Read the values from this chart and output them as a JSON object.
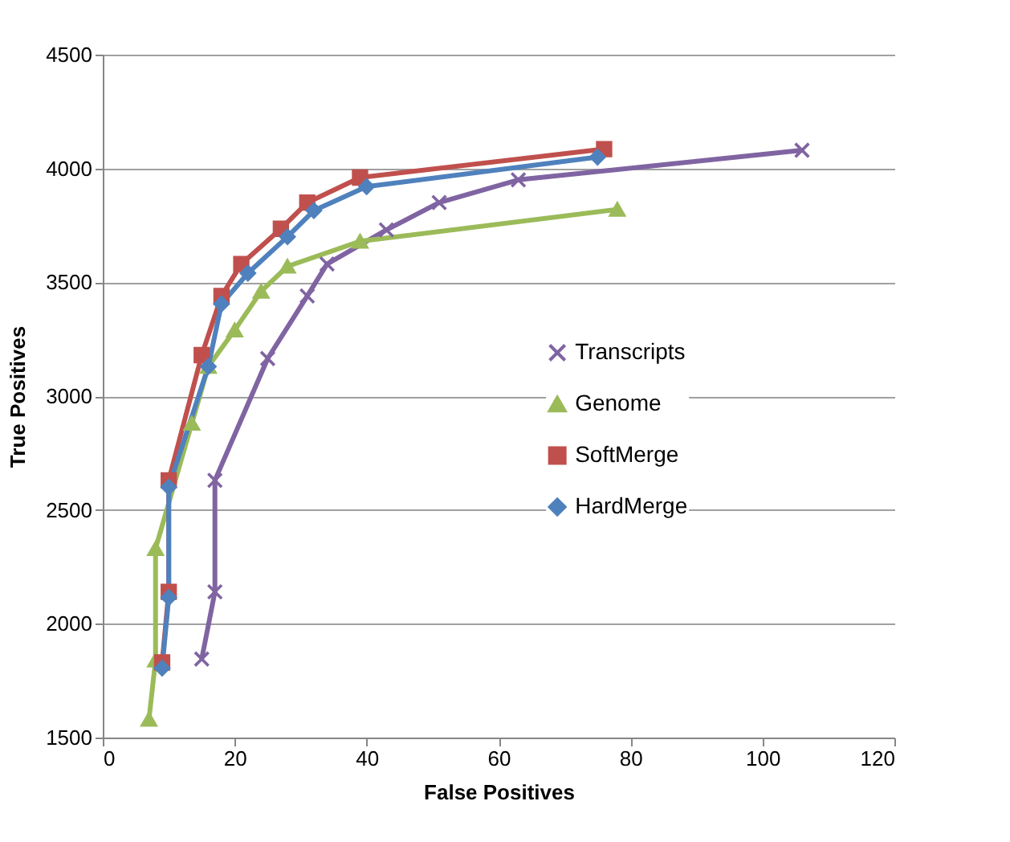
{
  "chart_data": {
    "type": "line",
    "xlabel": "False Positives",
    "ylabel": "True Positives",
    "xlim": [
      0,
      120
    ],
    "xticks": [
      0,
      20,
      40,
      60,
      80,
      100,
      120
    ],
    "ylim": [
      1500,
      4500
    ],
    "yticks": [
      1500,
      2000,
      2500,
      3000,
      3500,
      4000,
      4500
    ],
    "grid": "y",
    "legend": "right",
    "line_style": "solid",
    "series": [
      {
        "name": "Transcripts",
        "color": "#8064a2",
        "marker": "cross",
        "x": [
          15,
          17,
          17,
          25,
          31,
          34,
          43,
          51,
          63,
          106
        ],
        "values": [
          1845,
          2140,
          2630,
          3165,
          3440,
          3580,
          3730,
          3850,
          3950,
          4080
        ]
      },
      {
        "name": "Genome",
        "color": "#9bbb59",
        "marker": "triangle",
        "x": [
          7,
          8,
          8,
          13.5,
          16,
          20,
          24,
          28,
          39,
          78
        ],
        "values": [
          1580,
          1840,
          2330,
          2880,
          3130,
          3290,
          3460,
          3570,
          3680,
          3820
        ]
      },
      {
        "name": "SoftMerge",
        "color": "#c0504d",
        "marker": "square",
        "x": [
          9,
          10,
          10,
          15,
          18,
          21,
          27,
          31,
          39,
          76
        ],
        "values": [
          1830,
          2140,
          2630,
          3180,
          3440,
          3580,
          3735,
          3850,
          3960,
          4085
        ]
      },
      {
        "name": "HardMerge",
        "color": "#4f81bd",
        "marker": "diamond",
        "x": [
          9,
          10,
          10,
          16,
          18,
          22,
          28,
          32,
          40,
          75
        ],
        "values": [
          1805,
          2115,
          2600,
          3130,
          3405,
          3540,
          3700,
          3815,
          3920,
          4050
        ]
      }
    ]
  }
}
